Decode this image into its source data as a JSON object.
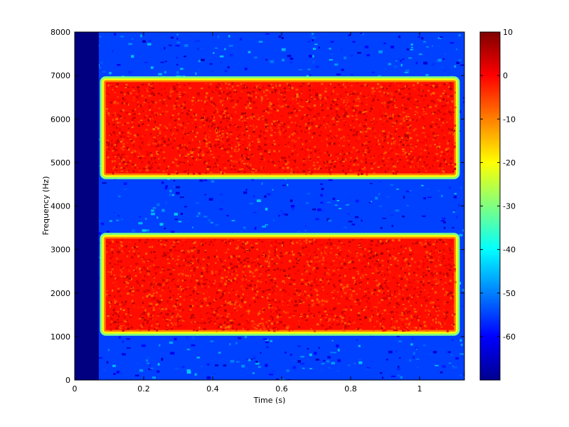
{
  "chart_data": {
    "type": "heatmap",
    "title": "",
    "xlabel": "Time (s)",
    "ylabel": "Frequency (Hz)",
    "xlim": [
      0,
      1.13
    ],
    "ylim": [
      0,
      8000
    ],
    "x_ticks": [
      0,
      0.2,
      0.4,
      0.6,
      0.8,
      1
    ],
    "x_tick_labels": [
      "0",
      "0.2",
      "0.4",
      "0.6",
      "0.8",
      "1"
    ],
    "y_ticks": [
      0,
      1000,
      2000,
      3000,
      4000,
      5000,
      6000,
      7000,
      8000
    ],
    "y_tick_labels": [
      "0",
      "1000",
      "2000",
      "3000",
      "4000",
      "5000",
      "6000",
      "7000",
      "8000"
    ],
    "colorbar": {
      "colormap": "jet",
      "range": [
        -70,
        10
      ],
      "ticks": [
        10,
        0,
        -10,
        -20,
        -30,
        -40,
        -50,
        -60
      ],
      "tick_labels": [
        "10",
        "0",
        "-10",
        "-20",
        "-30",
        "-40",
        "-50",
        "-60"
      ]
    },
    "signal_bands": [
      {
        "time_range": [
          0.09,
          1.1
        ],
        "freq_range": [
          1150,
          3250
        ],
        "level_db": 0
      },
      {
        "time_range": [
          0.09,
          1.1
        ],
        "freq_range": [
          4750,
          6850
        ],
        "level_db": 0
      }
    ],
    "background_level_db": -55,
    "silence_time_range": [
      0,
      0.07
    ],
    "silence_level_db": -70,
    "grid": false
  }
}
